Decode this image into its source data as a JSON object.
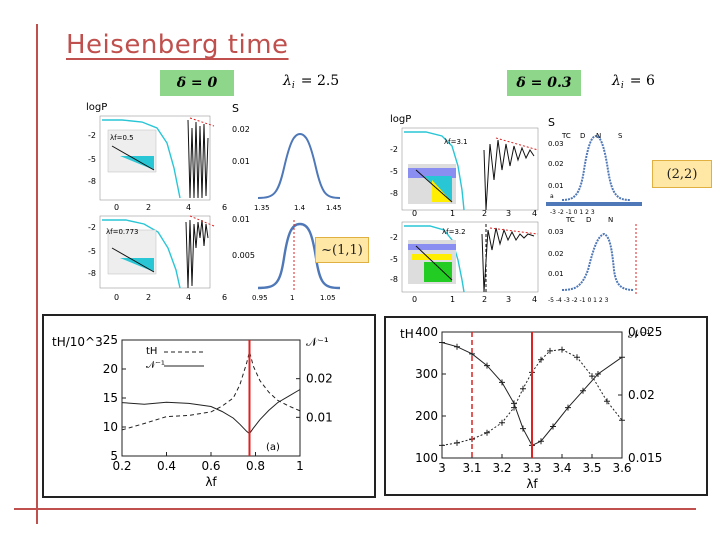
{
  "slide": {
    "title": "Heisenberg time",
    "left_header": {
      "delta_label": "δ = 0",
      "lambda_symbol": "λ",
      "lambda_sub": "i",
      "lambda_value": "= 2.5"
    },
    "right_header": {
      "delta_label": "δ = 0.3",
      "lambda_symbol": "λ",
      "lambda_sub": "i",
      "lambda_value": "= 6"
    },
    "annotation_left": "~(1,1)",
    "annotation_right": "(2,2)"
  },
  "top_left_figure": {
    "logP_label": "logP",
    "S_label": "S",
    "row1_inset": "λf=0.5",
    "row2_inset": "λf=0.773",
    "row1_y_ticks": [
      "-2",
      "-5",
      "-8"
    ],
    "row2_y_ticks": [
      "-2",
      "-5",
      "-8"
    ],
    "x_ticks": [
      "0",
      "2",
      "4",
      "6"
    ],
    "row1_S_ticks": [
      "0.02",
      "0.01"
    ],
    "row2_S_ticks": [
      "0.01",
      "0.005"
    ],
    "row1_S_x": [
      "1.35",
      "1.4",
      "1.45"
    ],
    "row2_S_x": [
      "0.95",
      "1",
      "1.05"
    ]
  },
  "top_right_figure": {
    "logP_label": "logP",
    "S_label": "S",
    "row1_inset": "λf=3.1",
    "row2_inset": "λf=3.2",
    "row1_y_ticks": [
      "-2",
      "-5",
      "-8"
    ],
    "row2_y_ticks": [
      "-2",
      "-5",
      "-8"
    ],
    "x_ticks": [
      "0",
      "1",
      "2",
      "3",
      "4"
    ],
    "row1_S_ticks": [
      "0.03",
      "0.02",
      "0.01"
    ],
    "row2_S_ticks": [
      "0.03",
      "0.02",
      "0.01"
    ],
    "tc_labels": [
      "TC",
      "D",
      "N",
      "S"
    ],
    "tc_labels2": [
      "TC",
      "D",
      "N"
    ],
    "small_a": "a",
    "row1_S_x": "-3 -2 -1 0 1 2 3",
    "row2_S_x": "-5 -4 -3 -2 -1 0 1 2 3"
  },
  "colors": {
    "accent": "#c0504d",
    "green_box": "#8dd68a",
    "cyan": "#29c6d6",
    "blue_curve": "#4f78b8",
    "annotation_bg": "#ffe8a6"
  },
  "chart_data": [
    {
      "type": "line",
      "title": "",
      "xlabel": "λf",
      "ylabel": "tH/10^3",
      "y2label": "𝒩⁻¹",
      "xlim": [
        0.2,
        1.0
      ],
      "ylim": [
        5,
        25
      ],
      "y2lim": [
        0.0,
        0.03
      ],
      "x_ticks": [
        "0.2",
        "0.4",
        "0.6",
        "0.8",
        "1"
      ],
      "y_ticks": [
        "5",
        "10",
        "15",
        "20",
        "25"
      ],
      "y2_ticks": [
        "0.01",
        "0.02"
      ],
      "vline_x": 0.773,
      "annotation": "(a)",
      "legend": [
        "tH",
        "𝒩⁻¹"
      ],
      "series": [
        {
          "name": "tH",
          "style": "dashed",
          "x": [
            0.2,
            0.3,
            0.4,
            0.5,
            0.6,
            0.65,
            0.7,
            0.73,
            0.76,
            0.773,
            0.79,
            0.82,
            0.86,
            0.9,
            0.95,
            1.0
          ],
          "y": [
            9.5,
            10.6,
            11.8,
            12.0,
            12.6,
            13.6,
            15.0,
            17.3,
            21.0,
            23.0,
            20.5,
            18.0,
            16.0,
            14.6,
            13.6,
            12.8
          ]
        },
        {
          "name": "𝒩⁻¹",
          "style": "solid",
          "x": [
            0.2,
            0.3,
            0.4,
            0.5,
            0.6,
            0.65,
            0.7,
            0.73,
            0.76,
            0.773,
            0.79,
            0.82,
            0.86,
            0.9,
            0.95,
            1.0
          ],
          "y": [
            0.0138,
            0.0134,
            0.0139,
            0.0136,
            0.0128,
            0.0115,
            0.0098,
            0.0082,
            0.0064,
            0.0058,
            0.0072,
            0.0094,
            0.0118,
            0.0138,
            0.0155,
            0.0172
          ]
        }
      ]
    },
    {
      "type": "line",
      "title": "",
      "xlabel": "λf",
      "ylabel": "tH",
      "y2label": "𝒩⁻¹",
      "xlim": [
        3.0,
        3.6
      ],
      "ylim": [
        100,
        400
      ],
      "y2lim": [
        0.015,
        0.025
      ],
      "x_ticks": [
        "3",
        "3.1",
        "3.2",
        "3.3",
        "3.4",
        "3.5",
        "3.6"
      ],
      "y_ticks": [
        "100",
        "200",
        "300",
        "400"
      ],
      "y2_ticks": [
        "0.015",
        "0.02",
        "0.025"
      ],
      "vline_dashed_x": 3.1,
      "vline_solid_x": 3.3,
      "series": [
        {
          "name": "tH",
          "style": "solid",
          "x": [
            3.0,
            3.05,
            3.1,
            3.15,
            3.2,
            3.24,
            3.27,
            3.3,
            3.33,
            3.37,
            3.42,
            3.47,
            3.52,
            3.6
          ],
          "y": [
            375,
            365,
            348,
            320,
            280,
            230,
            170,
            130,
            140,
            175,
            220,
            260,
            300,
            340
          ]
        },
        {
          "name": "𝒩⁻¹",
          "style": "dotted",
          "x": [
            3.0,
            3.05,
            3.1,
            3.15,
            3.2,
            3.24,
            3.27,
            3.3,
            3.33,
            3.36,
            3.4,
            3.45,
            3.5,
            3.55,
            3.6
          ],
          "y": [
            0.016,
            0.0162,
            0.0165,
            0.017,
            0.0178,
            0.019,
            0.0205,
            0.0218,
            0.0228,
            0.0235,
            0.0236,
            0.023,
            0.0215,
            0.0195,
            0.018
          ]
        }
      ]
    }
  ]
}
